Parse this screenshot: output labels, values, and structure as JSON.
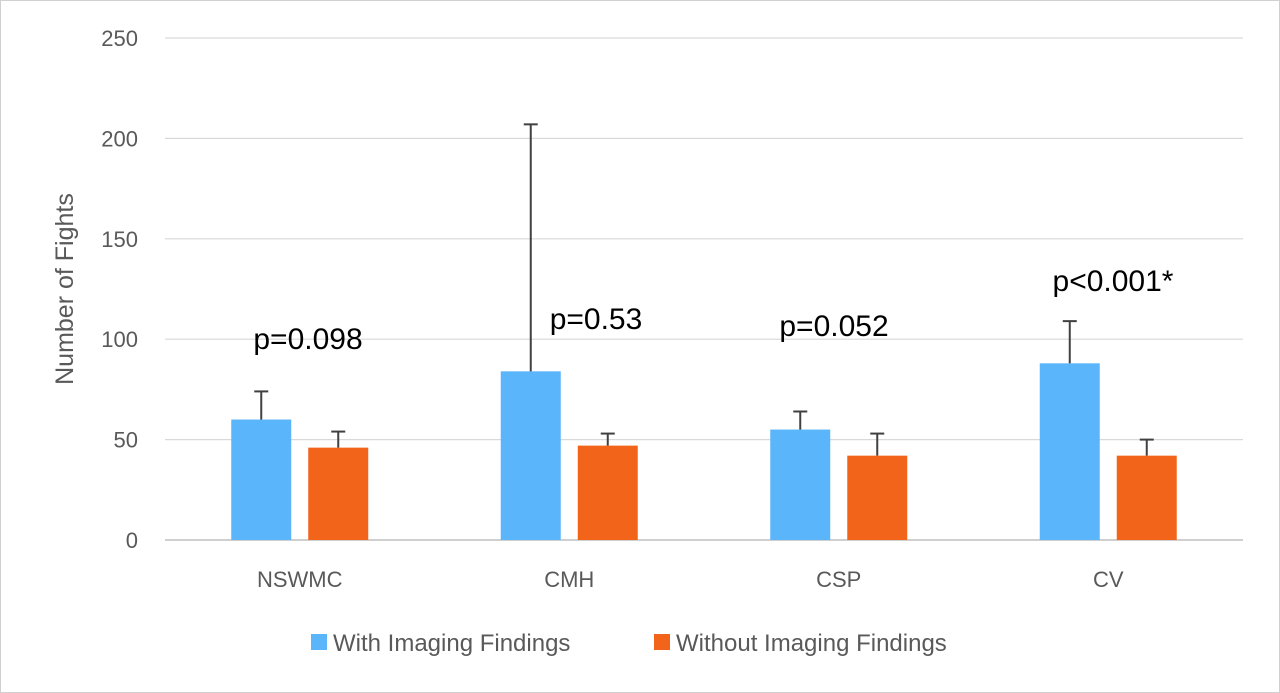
{
  "chart_data": {
    "type": "bar",
    "title": "",
    "xlabel": "",
    "ylabel": "Number of Fights",
    "ylim": [
      0,
      250
    ],
    "yticks": [
      "0",
      "50",
      "100",
      "150",
      "200",
      "250"
    ],
    "grid": true,
    "legend_position": "bottom",
    "categories": [
      "NSWMC",
      "CMH",
      "CSP",
      "CV"
    ],
    "series": [
      {
        "name": "With Imaging Findings",
        "color": "#5BB5FA",
        "values": [
          60,
          84,
          55,
          88
        ],
        "error_upper": [
          74,
          207,
          64,
          109
        ]
      },
      {
        "name": "Without Imaging Findings",
        "color": "#F26419",
        "values": [
          46,
          47,
          42,
          42
        ],
        "error_upper": [
          54,
          53,
          53,
          50
        ]
      }
    ],
    "annotations": [
      "p=0.098",
      "p=0.53",
      "p=0.052",
      "p<0.001*"
    ]
  }
}
